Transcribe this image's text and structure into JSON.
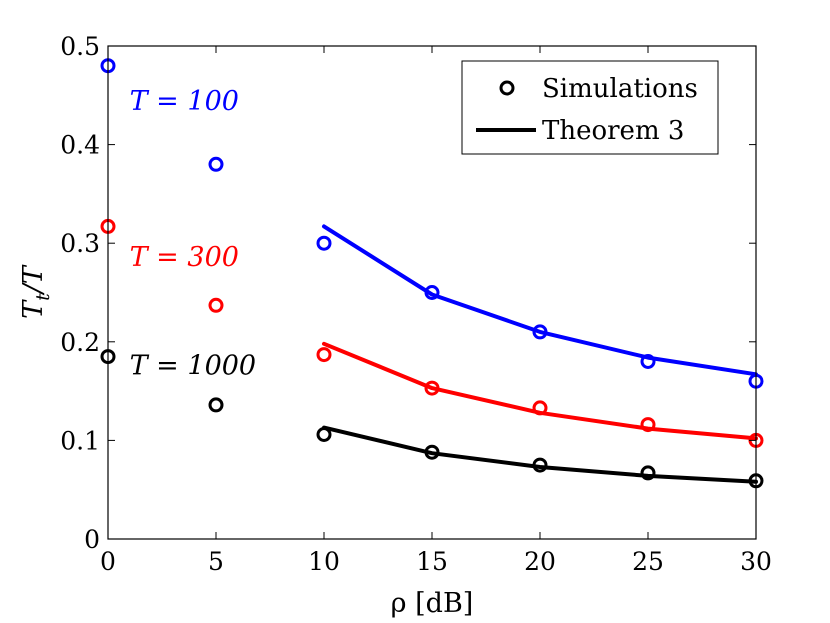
{
  "chart_data": {
    "type": "scatter",
    "xlabel": "ρ [dB]",
    "ylabel": "T_t/T",
    "xlim": [
      0,
      30
    ],
    "ylim": [
      0,
      0.5
    ],
    "xticks": [
      0,
      5,
      10,
      15,
      20,
      25,
      30
    ],
    "yticks": [
      0,
      0.1,
      0.2,
      0.3,
      0.4,
      0.5
    ],
    "grid": false,
    "legend": {
      "position": "top-right",
      "entries": [
        {
          "label": "Simulations",
          "marker": "circle",
          "color": "#000000"
        },
        {
          "label": "Theorem 3",
          "marker": "line",
          "color": "#000000"
        }
      ]
    },
    "annotations": [
      {
        "text": "T = 100",
        "color": "#0000ff",
        "x": 1,
        "y": 0.435
      },
      {
        "text": "T = 300",
        "color": "#ff0000",
        "x": 1,
        "y": 0.277
      },
      {
        "text": "T = 1000",
        "color": "#000000",
        "x": 1,
        "y": 0.167
      }
    ],
    "series": [
      {
        "color": "#0000ff",
        "sim_x": [
          0,
          5,
          10,
          15,
          20,
          25,
          30
        ],
        "sim_y": [
          0.48,
          0.38,
          0.3,
          0.25,
          0.21,
          0.18,
          0.16
        ],
        "theory_x": [
          10,
          15,
          20,
          25,
          30
        ],
        "theory_y": [
          0.317,
          0.248,
          0.21,
          0.184,
          0.167
        ]
      },
      {
        "color": "#ff0000",
        "sim_x": [
          0,
          5,
          10,
          15,
          20,
          25,
          30
        ],
        "sim_y": [
          0.317,
          0.237,
          0.187,
          0.153,
          0.133,
          0.116,
          0.1
        ],
        "theory_x": [
          10,
          15,
          20,
          25,
          30
        ],
        "theory_y": [
          0.198,
          0.153,
          0.128,
          0.112,
          0.102
        ]
      },
      {
        "color": "#000000",
        "sim_x": [
          0,
          5,
          10,
          15,
          20,
          25,
          30
        ],
        "sim_y": [
          0.185,
          0.136,
          0.106,
          0.088,
          0.075,
          0.067,
          0.059
        ],
        "theory_x": [
          10,
          15,
          20,
          25,
          30
        ],
        "theory_y": [
          0.113,
          0.087,
          0.073,
          0.064,
          0.058
        ]
      }
    ]
  }
}
